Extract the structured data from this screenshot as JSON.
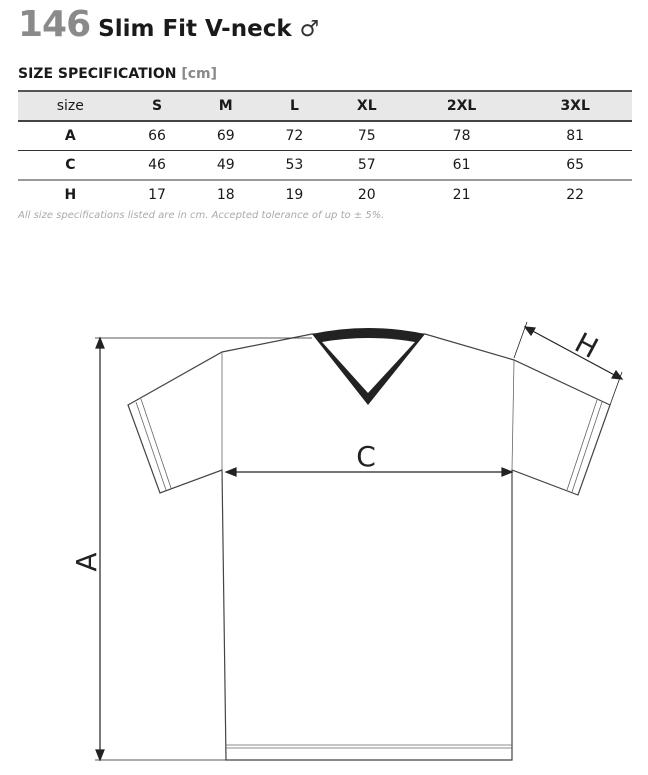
{
  "header": {
    "number": "146",
    "name": "Slim Fit V-neck",
    "gender_symbol": "♂"
  },
  "spec": {
    "title": "SIZE SPECIFICATION",
    "unit": "[cm]"
  },
  "table": {
    "columns": [
      "size",
      "S",
      "M",
      "L",
      "XL",
      "2XL",
      "3XL"
    ],
    "rows": [
      {
        "label": "A",
        "values": [
          "66",
          "69",
          "72",
          "75",
          "78",
          "81"
        ]
      },
      {
        "label": "C",
        "values": [
          "46",
          "49",
          "53",
          "57",
          "61",
          "65"
        ]
      },
      {
        "label": "H",
        "values": [
          "17",
          "18",
          "19",
          "20",
          "21",
          "22"
        ]
      }
    ]
  },
  "note": "All size specifications listed are in cm. Accepted tolerance of up to ± 5%.",
  "diagram": {
    "labels": {
      "a": "A",
      "c": "C",
      "h": "H"
    }
  }
}
